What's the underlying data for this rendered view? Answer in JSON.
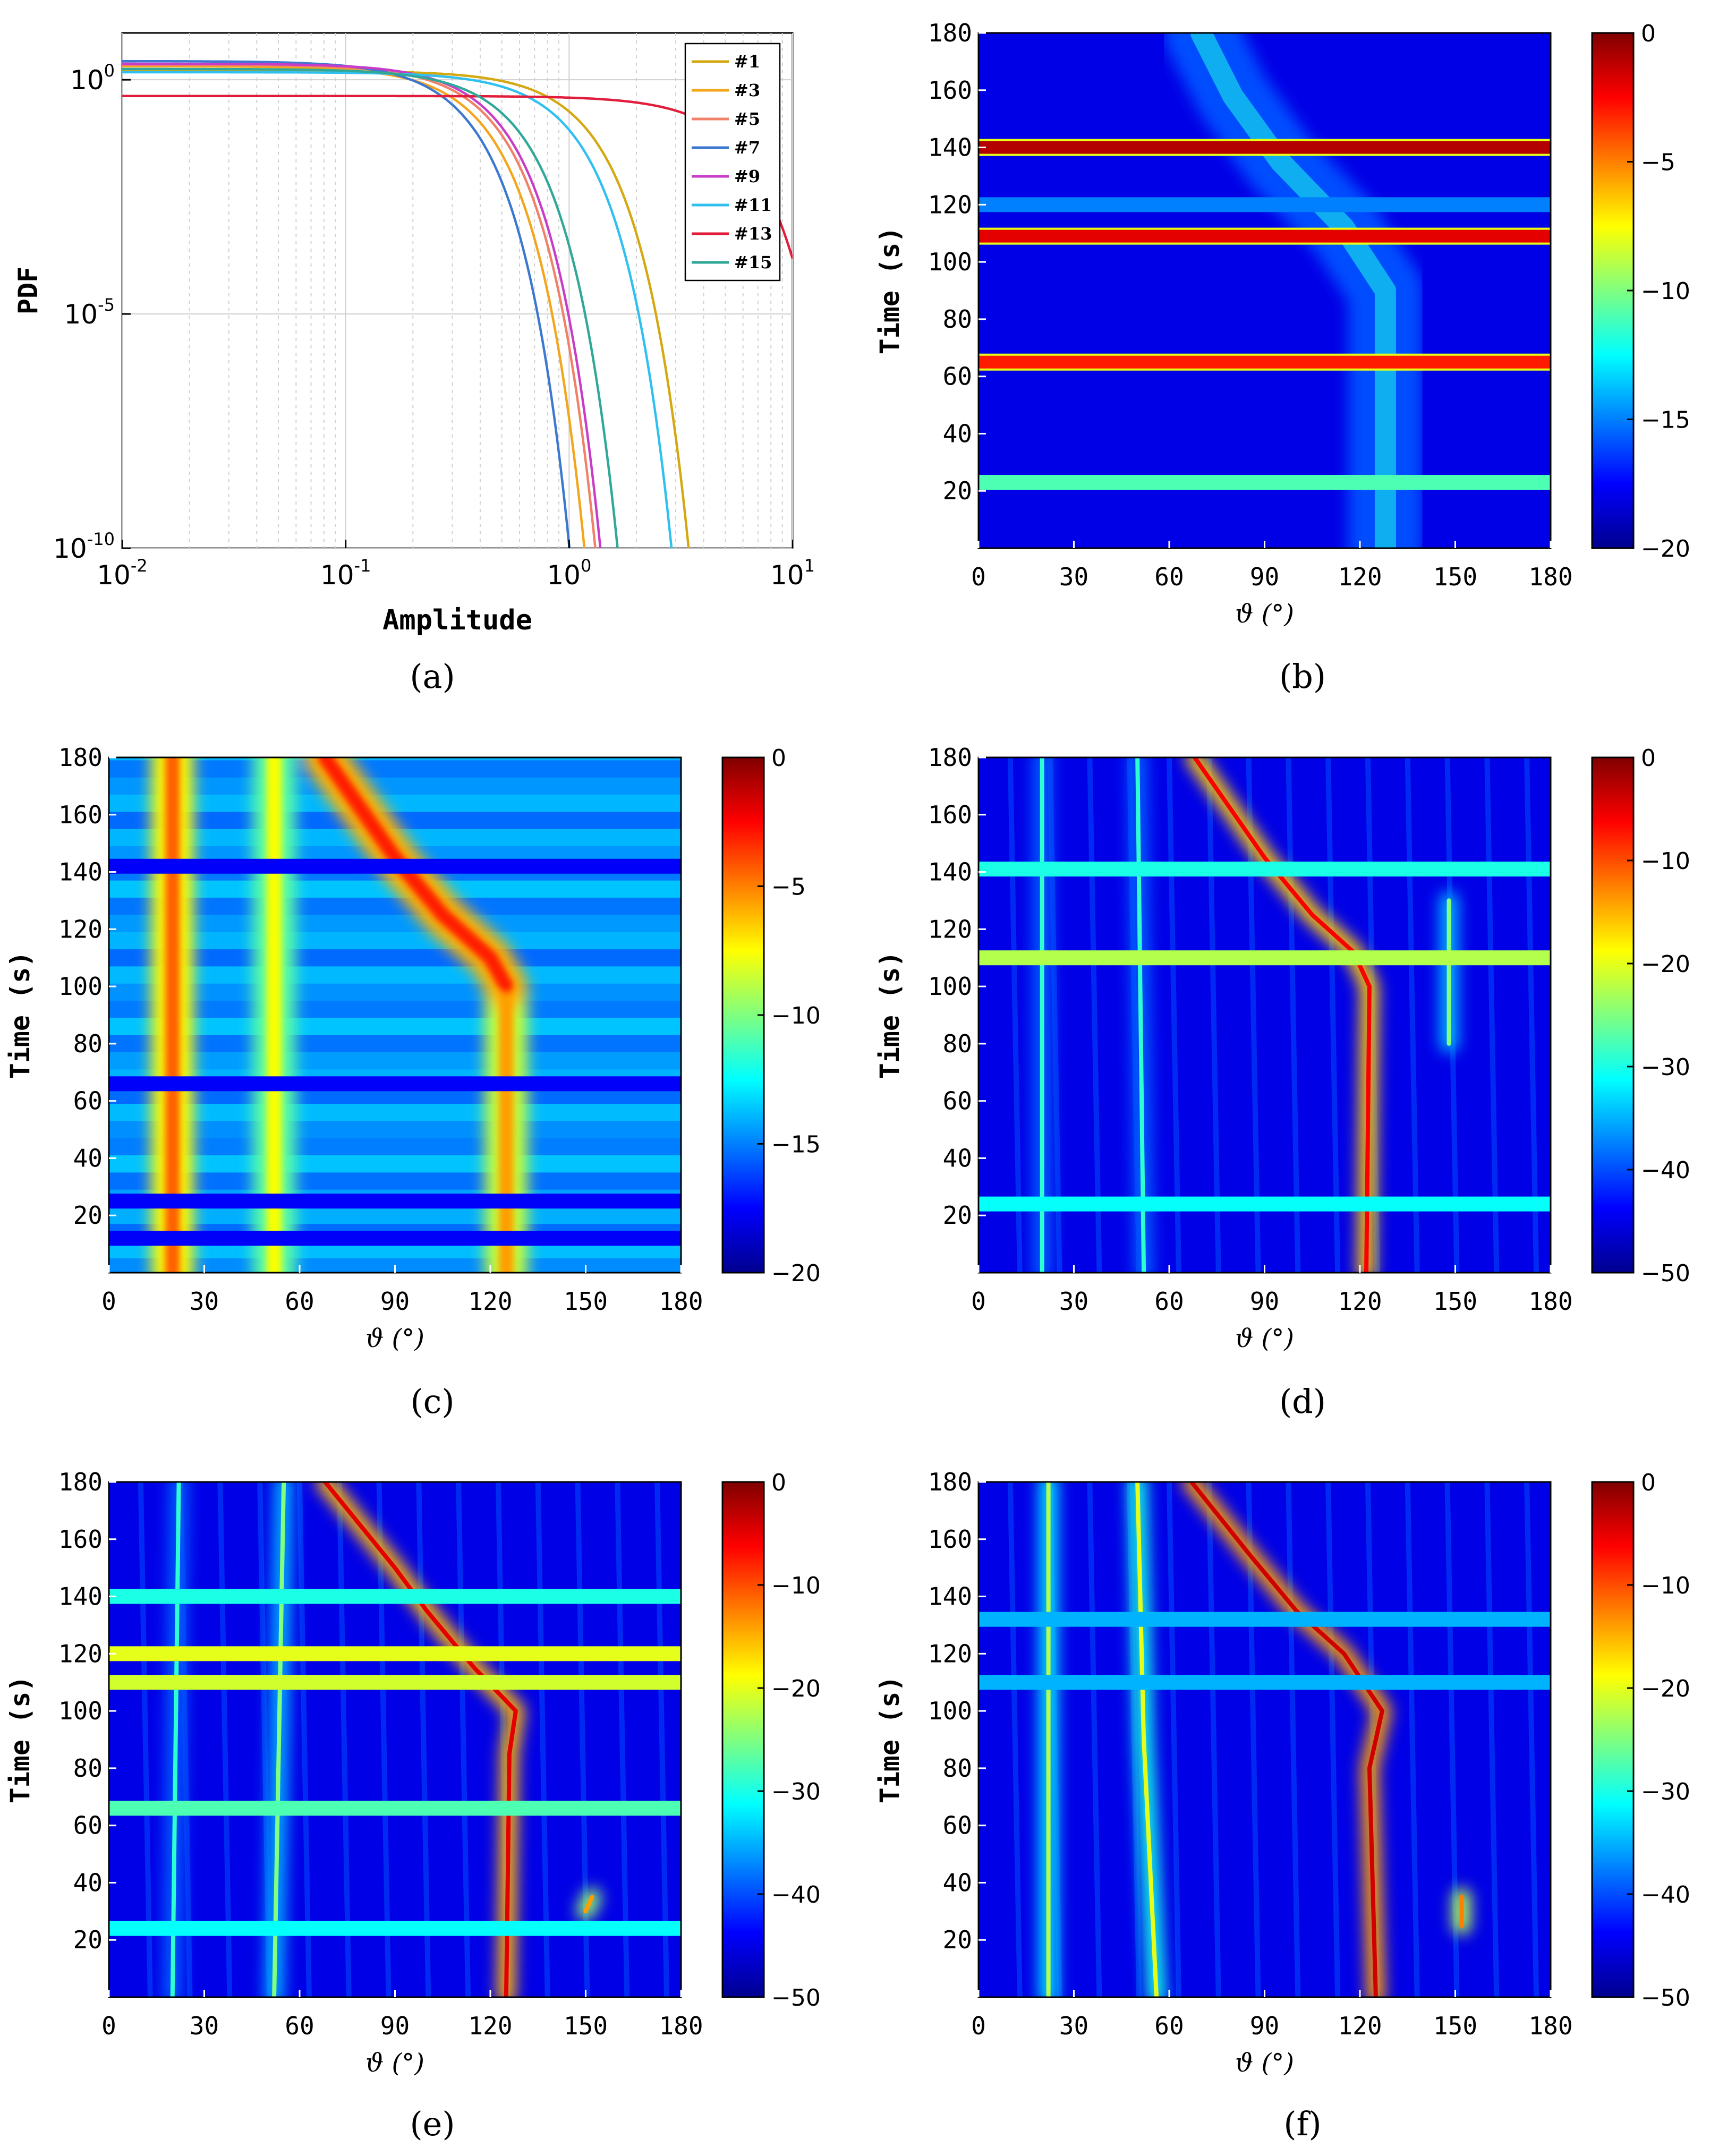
{
  "figure": {
    "panel_labels": [
      "(a)",
      "(b)",
      "(c)",
      "(d)",
      "(e)",
      "(f)"
    ]
  },
  "chart_data": [
    {
      "id": "a",
      "type": "line",
      "xscale": "log",
      "yscale": "log",
      "xlabel": "Amplitude",
      "ylabel": "PDF",
      "xlim": [
        0.01,
        10
      ],
      "ylim": [
        1e-10,
        10
      ],
      "x_ticks": [
        0.01,
        0.1,
        1,
        10
      ],
      "x_tick_labels": [
        "10",
        "10",
        "10",
        "10"
      ],
      "x_tick_exps": [
        "-2",
        "-1",
        "0",
        "1"
      ],
      "y_ticks": [
        1,
        1e-05,
        1e-10
      ],
      "y_tick_labels": [
        "10",
        "10",
        "10"
      ],
      "y_tick_exps": [
        "0",
        "-5",
        "-10"
      ],
      "grid": true,
      "legend_position": "top-right",
      "series": [
        {
          "name": "#1",
          "color": "#D4A810",
          "peak": 1.55,
          "sigma": 0.5
        },
        {
          "name": "#3",
          "color": "#F3A51C",
          "peak": 1.95,
          "sigma": 0.17
        },
        {
          "name": "#5",
          "color": "#F08068",
          "peak": 2.1,
          "sigma": 0.19
        },
        {
          "name": "#7",
          "color": "#3C78D0",
          "peak": 2.5,
          "sigma": 0.145
        },
        {
          "name": "#9",
          "color": "#C83CC8",
          "peak": 2.2,
          "sigma": 0.2
        },
        {
          "name": "#11",
          "color": "#30C0F0",
          "peak": 1.45,
          "sigma": 0.42
        },
        {
          "name": "#13",
          "color": "#E01E3C",
          "peak": 0.45,
          "sigma": 2.5
        },
        {
          "name": "#15",
          "color": "#30A898",
          "peak": 1.7,
          "sigma": 0.24
        }
      ]
    },
    {
      "id": "b",
      "type": "heatmap",
      "variant": "events",
      "xlabel": "ϑ (°)",
      "ylabel": "Time (s)",
      "xlim": [
        0,
        180
      ],
      "ylim": [
        0,
        180
      ],
      "x_ticks": [
        0,
        30,
        60,
        90,
        120,
        150,
        180
      ],
      "y_ticks": [
        20,
        40,
        60,
        80,
        100,
        120,
        140,
        160,
        180
      ],
      "clim": [
        -20,
        0
      ],
      "cbar_ticks": [
        0,
        -5,
        -10,
        -15,
        -20
      ],
      "horizontal_bands": [
        {
          "t": 140,
          "level": 0.95
        },
        {
          "t": 109,
          "level": 0.9
        },
        {
          "t": 65,
          "level": 0.85
        },
        {
          "t": 120,
          "level": 0.25
        },
        {
          "t": 23,
          "level": 0.45
        }
      ],
      "tracks": [
        {
          "points": [
            [
              70,
              180
            ],
            [
              80,
              158
            ],
            [
              95,
              135
            ],
            [
              115,
              112
            ],
            [
              128,
              90
            ],
            [
              128,
              0
            ]
          ],
          "level": 0.4
        }
      ]
    },
    {
      "id": "c",
      "type": "heatmap",
      "variant": "bright",
      "xlabel": "ϑ (°)",
      "ylabel": "Time (s)",
      "xlim": [
        0,
        180
      ],
      "ylim": [
        0,
        180
      ],
      "x_ticks": [
        0,
        30,
        60,
        90,
        120,
        150,
        180
      ],
      "y_ticks": [
        20,
        40,
        60,
        80,
        100,
        120,
        140,
        160,
        180
      ],
      "clim": [
        -20,
        0
      ],
      "cbar_ticks": [
        0,
        -5,
        -10,
        -15,
        -20
      ],
      "vertical_tracks": [
        {
          "points": [
            [
              20,
              180
            ],
            [
              20,
              0
            ]
          ],
          "level": 0.78
        },
        {
          "points": [
            [
              52,
              180
            ],
            [
              52,
              0
            ]
          ],
          "level": 0.62
        },
        {
          "points": [
            [
              125,
              100
            ],
            [
              125,
              0
            ]
          ],
          "level": 0.72
        },
        {
          "points": [
            [
              68,
              180
            ],
            [
              90,
              145
            ],
            [
              105,
              125
            ],
            [
              120,
              110
            ],
            [
              125,
              100
            ]
          ],
          "level": 0.85
        }
      ],
      "dark_bands": [
        142,
        66,
        25,
        12
      ]
    },
    {
      "id": "d",
      "type": "heatmap",
      "variant": "dark",
      "xlabel": "ϑ (°)",
      "ylabel": "Time (s)",
      "xlim": [
        0,
        180
      ],
      "ylim": [
        0,
        180
      ],
      "x_ticks": [
        0,
        30,
        60,
        90,
        120,
        150,
        180
      ],
      "y_ticks": [
        20,
        40,
        60,
        80,
        100,
        120,
        140,
        160,
        180
      ],
      "clim": [
        -50,
        0
      ],
      "cbar_ticks": [
        0,
        -10,
        -20,
        -30,
        -40,
        -50
      ],
      "tracks": [
        {
          "points": [
            [
              68,
              180
            ],
            [
              90,
              145
            ],
            [
              105,
              125
            ],
            [
              118,
              112
            ],
            [
              123,
              100
            ],
            [
              122,
              0
            ]
          ],
          "level": 0.88
        },
        {
          "points": [
            [
              20,
              180
            ],
            [
              20,
              0
            ]
          ],
          "level": 0.42
        },
        {
          "points": [
            [
              50,
              180
            ],
            [
              52,
              0
            ]
          ],
          "level": 0.42
        },
        {
          "points": [
            [
              148,
              130
            ],
            [
              148,
              80
            ]
          ],
          "level": 0.5
        }
      ],
      "horizontal_bands": [
        {
          "t": 141,
          "level": 0.4
        },
        {
          "t": 110,
          "level": 0.55
        },
        {
          "t": 24,
          "level": 0.38
        }
      ]
    },
    {
      "id": "e",
      "type": "heatmap",
      "variant": "dark",
      "xlabel": "ϑ (°)",
      "ylabel": "Time (s)",
      "xlim": [
        0,
        180
      ],
      "ylim": [
        0,
        180
      ],
      "x_ticks": [
        0,
        30,
        60,
        90,
        120,
        150,
        180
      ],
      "y_ticks": [
        20,
        40,
        60,
        80,
        100,
        120,
        140,
        160,
        180
      ],
      "clim": [
        -50,
        0
      ],
      "cbar_ticks": [
        0,
        -10,
        -20,
        -30,
        -40,
        -50
      ],
      "tracks": [
        {
          "points": [
            [
              68,
              180
            ],
            [
              90,
              150
            ],
            [
              100,
              135
            ],
            [
              115,
              115
            ],
            [
              128,
              100
            ],
            [
              126,
              85
            ],
            [
              125,
              0
            ]
          ],
          "level": 0.9
        },
        {
          "points": [
            [
              22,
              180
            ],
            [
              20,
              0
            ]
          ],
          "level": 0.42
        },
        {
          "points": [
            [
              55,
              180
            ],
            [
              52,
              0
            ]
          ],
          "level": 0.5
        },
        {
          "points": [
            [
              152,
              35
            ],
            [
              150,
              30
            ]
          ],
          "level": 0.72
        }
      ],
      "horizontal_bands": [
        {
          "t": 140,
          "level": 0.4
        },
        {
          "t": 120,
          "level": 0.6
        },
        {
          "t": 110,
          "level": 0.58
        },
        {
          "t": 66,
          "level": 0.45
        },
        {
          "t": 24,
          "level": 0.38
        }
      ]
    },
    {
      "id": "f",
      "type": "heatmap",
      "variant": "dark",
      "xlabel": "ϑ (°)",
      "ylabel": "Time (s)",
      "xlim": [
        0,
        180
      ],
      "ylim": [
        0,
        180
      ],
      "x_ticks": [
        0,
        30,
        60,
        90,
        120,
        150,
        180
      ],
      "y_ticks": [
        20,
        40,
        60,
        80,
        100,
        120,
        140,
        160,
        180
      ],
      "clim": [
        -50,
        0
      ],
      "cbar_ticks": [
        0,
        -10,
        -20,
        -30,
        -40,
        -50
      ],
      "tracks": [
        {
          "points": [
            [
              67,
              180
            ],
            [
              85,
              155
            ],
            [
              100,
              135
            ],
            [
              115,
              120
            ],
            [
              127,
              100
            ],
            [
              123,
              80
            ],
            [
              125,
              0
            ]
          ],
          "level": 0.92
        },
        {
          "points": [
            [
              22,
              180
            ],
            [
              22,
              0
            ]
          ],
          "level": 0.55
        },
        {
          "points": [
            [
              50,
              180
            ],
            [
              52,
              90
            ],
            [
              56,
              0
            ]
          ],
          "level": 0.6
        },
        {
          "points": [
            [
              152,
              35
            ],
            [
              152,
              25
            ]
          ],
          "level": 0.75
        }
      ],
      "horizontal_bands": [
        {
          "t": 132,
          "level": 0.3
        },
        {
          "t": 110,
          "level": 0.3
        }
      ]
    }
  ]
}
